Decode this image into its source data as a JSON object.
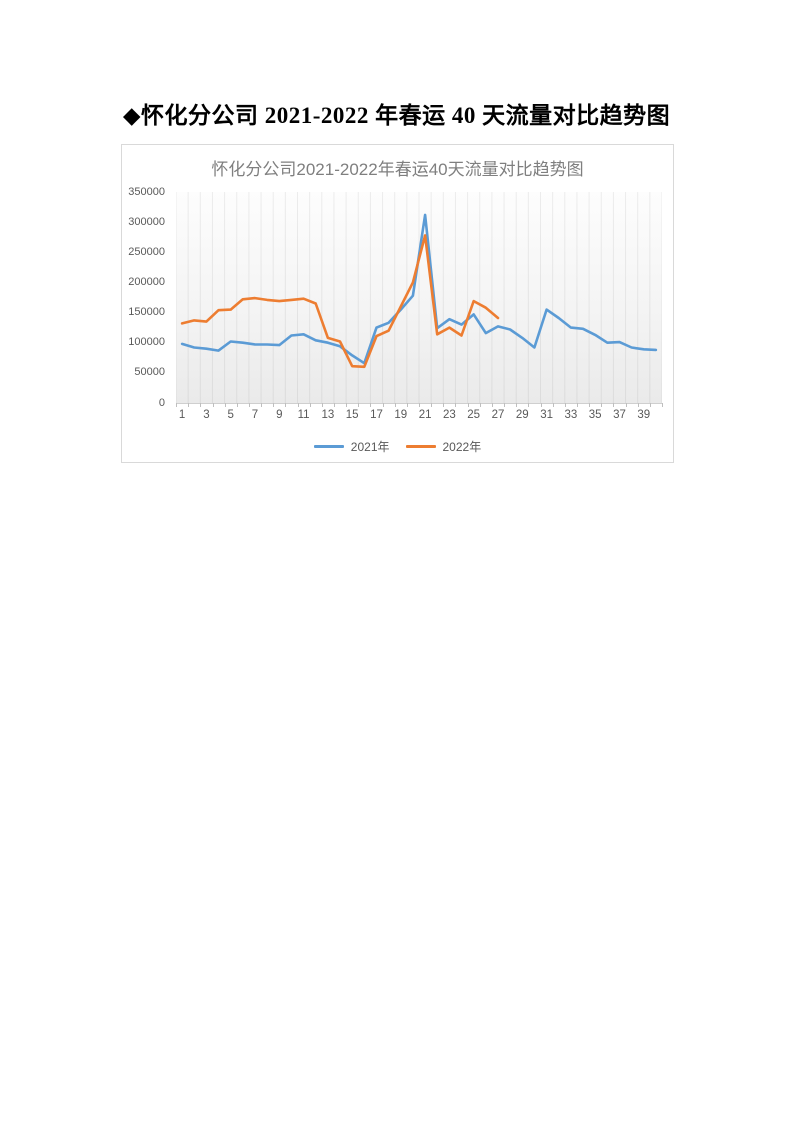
{
  "page": {
    "doc_title": "◆怀化分公司 2021-2022 年春运 40 天流量对比趋势图"
  },
  "chart_data": {
    "type": "line",
    "title": "怀化分公司2021-2022年春运40天流量对比趋势图",
    "x": [
      1,
      2,
      3,
      4,
      5,
      6,
      7,
      8,
      9,
      10,
      11,
      12,
      13,
      14,
      15,
      16,
      17,
      18,
      19,
      20,
      21,
      22,
      23,
      24,
      25,
      26,
      27,
      28,
      29,
      30,
      31,
      32,
      33,
      34,
      35,
      36,
      37,
      38,
      39,
      40
    ],
    "x_tick_labels": [
      "1",
      "3",
      "5",
      "7",
      "9",
      "11",
      "13",
      "15",
      "17",
      "19",
      "21",
      "23",
      "25",
      "27",
      "29",
      "31",
      "33",
      "35",
      "37",
      "39"
    ],
    "y_tick_labels": [
      "0",
      "50000",
      "100000",
      "150000",
      "200000",
      "250000",
      "300000",
      "350000"
    ],
    "ylim": [
      0,
      350000
    ],
    "ytick_step": 50000,
    "grid": "vertical-only",
    "legend_position": "bottom",
    "series": [
      {
        "name": "2021年",
        "color": "#5B9BD5",
        "values": [
          98000,
          92000,
          90000,
          87000,
          102000,
          100000,
          97000,
          97000,
          96000,
          112000,
          114000,
          104000,
          100000,
          94000,
          79000,
          66000,
          125000,
          133000,
          155000,
          178000,
          312000,
          124000,
          139000,
          130000,
          147000,
          116000,
          127000,
          122000,
          108000,
          92000,
          155000,
          141000,
          125000,
          123000,
          113000,
          100000,
          101000,
          92000,
          89000,
          88000
        ]
      },
      {
        "name": "2022年",
        "color": "#ED7D31",
        "values": [
          132000,
          137000,
          135000,
          154000,
          155000,
          172000,
          174000,
          171000,
          169000,
          171000,
          173000,
          165000,
          108000,
          102000,
          61000,
          60000,
          111000,
          120000,
          160000,
          200000,
          278000,
          114000,
          125000,
          112000,
          169000,
          158000,
          141000
        ]
      }
    ]
  }
}
